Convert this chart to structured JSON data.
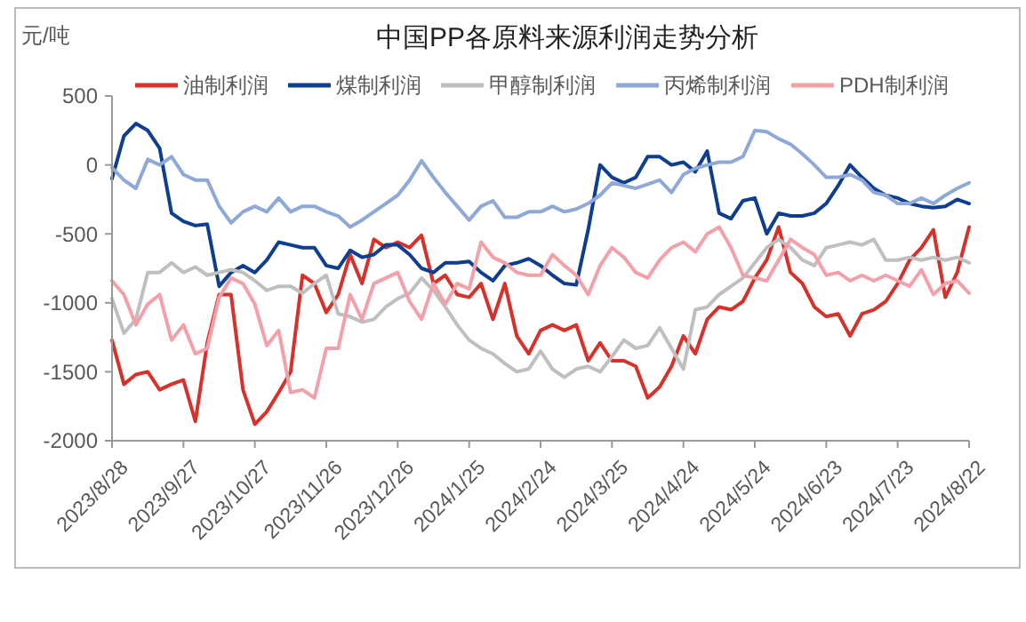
{
  "chart_data": {
    "type": "line",
    "title": "中国PP各原料来源利润走势分析",
    "ylabel": "元/吨",
    "legend": "top",
    "line_style": "solid",
    "marker": "none",
    "xlim": [
      "2023-08-28",
      "2024-08-22"
    ],
    "xticks": [
      {
        "value": "2023-08-28",
        "label": "2023/8/28"
      },
      {
        "value": "2023-09-27",
        "label": "2023/9/27"
      },
      {
        "value": "2023-10-27",
        "label": "2023/10/27"
      },
      {
        "value": "2023-11-26",
        "label": "2023/11/26"
      },
      {
        "value": "2023-12-26",
        "label": "2023/12/26"
      },
      {
        "value": "2024-01-25",
        "label": "2024/1/25"
      },
      {
        "value": "2024-02-24",
        "label": "2024/2/24"
      },
      {
        "value": "2024-03-25",
        "label": "2024/3/25"
      },
      {
        "value": "2024-04-24",
        "label": "2024/4/24"
      },
      {
        "value": "2024-05-24",
        "label": "2024/5/24"
      },
      {
        "value": "2024-06-23",
        "label": "2024/6/23"
      },
      {
        "value": "2024-07-23",
        "label": "2024/7/23"
      },
      {
        "value": "2024-08-22",
        "label": "2024/8/22"
      }
    ],
    "ylim": [
      -2000,
      500
    ],
    "yticks": [
      -2000,
      -1500,
      -1000,
      -500,
      0,
      500
    ],
    "x": [
      "2023-08-28",
      "2023-09-02",
      "2023-09-07",
      "2023-09-12",
      "2023-09-17",
      "2023-09-22",
      "2023-09-27",
      "2023-10-02",
      "2023-10-07",
      "2023-10-12",
      "2023-10-17",
      "2023-10-22",
      "2023-10-27",
      "2023-11-01",
      "2023-11-06",
      "2023-11-11",
      "2023-11-16",
      "2023-11-21",
      "2023-11-26",
      "2023-12-01",
      "2023-12-06",
      "2023-12-11",
      "2023-12-16",
      "2023-12-21",
      "2023-12-26",
      "2023-12-31",
      "2024-01-05",
      "2024-01-10",
      "2024-01-15",
      "2024-01-20",
      "2024-01-25",
      "2024-01-30",
      "2024-02-04",
      "2024-02-09",
      "2024-02-14",
      "2024-02-19",
      "2024-02-24",
      "2024-02-29",
      "2024-03-05",
      "2024-03-10",
      "2024-03-15",
      "2024-03-20",
      "2024-03-25",
      "2024-03-30",
      "2024-04-04",
      "2024-04-09",
      "2024-04-14",
      "2024-04-19",
      "2024-04-24",
      "2024-04-29",
      "2024-05-04",
      "2024-05-09",
      "2024-05-14",
      "2024-05-19",
      "2024-05-24",
      "2024-05-29",
      "2024-06-03",
      "2024-06-08",
      "2024-06-13",
      "2024-06-18",
      "2024-06-23",
      "2024-06-28",
      "2024-07-03",
      "2024-07-08",
      "2024-07-13",
      "2024-07-18",
      "2024-07-23",
      "2024-07-28",
      "2024-08-02",
      "2024-08-07",
      "2024-08-12",
      "2024-08-17",
      "2024-08-22"
    ],
    "series": [
      {
        "name": "油制利润",
        "color": "#d7312a",
        "values": [
          -1270,
          -1590,
          -1520,
          -1500,
          -1630,
          -1590,
          -1560,
          -1860,
          -1290,
          -940,
          -940,
          -1630,
          -1880,
          -1790,
          -1650,
          -1500,
          -800,
          -860,
          -1070,
          -940,
          -650,
          -860,
          -540,
          -600,
          -560,
          -600,
          -510,
          -860,
          -800,
          -940,
          -960,
          -860,
          -1120,
          -860,
          -1240,
          -1370,
          -1200,
          -1160,
          -1200,
          -1160,
          -1420,
          -1290,
          -1420,
          -1420,
          -1460,
          -1690,
          -1610,
          -1460,
          -1240,
          -1370,
          -1120,
          -1030,
          -1050,
          -990,
          -820,
          -690,
          -450,
          -780,
          -860,
          -1030,
          -1100,
          -1080,
          -1240,
          -1080,
          -1050,
          -990,
          -860,
          -690,
          -600,
          -470,
          -960,
          -780,
          -450
        ]
      },
      {
        "name": "煤制利润",
        "color": "#0f3d8f",
        "values": [
          -100,
          210,
          300,
          250,
          120,
          -350,
          -410,
          -440,
          -430,
          -880,
          -780,
          -730,
          -780,
          -690,
          -560,
          -580,
          -600,
          -600,
          -730,
          -750,
          -620,
          -670,
          -650,
          -580,
          -580,
          -650,
          -750,
          -780,
          -710,
          -710,
          -700,
          -780,
          -840,
          -730,
          -710,
          -680,
          -730,
          -800,
          -860,
          -870,
          -470,
          0,
          -90,
          -130,
          -90,
          60,
          60,
          0,
          20,
          -50,
          100,
          -350,
          -390,
          -260,
          -240,
          -500,
          -350,
          -370,
          -370,
          -350,
          -280,
          -150,
          0,
          -90,
          -170,
          -220,
          -240,
          -280,
          -300,
          -310,
          -300,
          -250,
          -280
        ]
      },
      {
        "name": "甲醇制利润",
        "color": "#bfbfbf",
        "values": [
          -970,
          -1220,
          -1120,
          -780,
          -780,
          -710,
          -780,
          -740,
          -800,
          -780,
          -760,
          -780,
          -840,
          -910,
          -880,
          -880,
          -930,
          -860,
          -800,
          -1080,
          -1100,
          -1140,
          -1120,
          -1030,
          -970,
          -930,
          -820,
          -910,
          -1030,
          -1160,
          -1270,
          -1330,
          -1370,
          -1440,
          -1500,
          -1480,
          -1350,
          -1480,
          -1540,
          -1480,
          -1460,
          -1500,
          -1390,
          -1270,
          -1330,
          -1310,
          -1180,
          -1330,
          -1480,
          -1050,
          -1030,
          -940,
          -880,
          -820,
          -710,
          -600,
          -540,
          -600,
          -690,
          -730,
          -600,
          -580,
          -560,
          -580,
          -540,
          -690,
          -690,
          -670,
          -690,
          -670,
          -690,
          -670,
          -710
        ]
      },
      {
        "name": "丙烯制利润",
        "color": "#8ea9d8",
        "values": [
          -20,
          -110,
          -170,
          40,
          0,
          60,
          -70,
          -110,
          -110,
          -300,
          -420,
          -340,
          -300,
          -340,
          -240,
          -340,
          -300,
          -300,
          -340,
          -370,
          -450,
          -400,
          -340,
          -280,
          -220,
          -110,
          30,
          -90,
          -200,
          -300,
          -400,
          -300,
          -260,
          -380,
          -380,
          -340,
          -340,
          -300,
          -340,
          -320,
          -280,
          -220,
          -130,
          -150,
          -170,
          -140,
          -110,
          -200,
          -70,
          -25,
          0,
          20,
          20,
          60,
          250,
          240,
          190,
          150,
          80,
          0,
          -90,
          -90,
          -70,
          -110,
          -200,
          -220,
          -280,
          -280,
          -240,
          -280,
          -220,
          -170,
          -130
        ]
      },
      {
        "name": "PDH制利润",
        "color": "#f4a0a8",
        "values": [
          -840,
          -940,
          -1160,
          -1010,
          -940,
          -1270,
          -1160,
          -1370,
          -1330,
          -960,
          -820,
          -860,
          -1010,
          -1310,
          -1200,
          -1650,
          -1630,
          -1690,
          -1330,
          -1330,
          -940,
          -1120,
          -860,
          -820,
          -780,
          -990,
          -1120,
          -860,
          -1010,
          -860,
          -900,
          -560,
          -670,
          -710,
          -780,
          -800,
          -800,
          -650,
          -730,
          -800,
          -940,
          -730,
          -600,
          -670,
          -780,
          -820,
          -690,
          -600,
          -560,
          -630,
          -500,
          -450,
          -600,
          -800,
          -820,
          -840,
          -690,
          -540,
          -600,
          -650,
          -800,
          -780,
          -840,
          -800,
          -840,
          -800,
          -840,
          -880,
          -760,
          -940,
          -860,
          -840,
          -930
        ]
      }
    ]
  }
}
